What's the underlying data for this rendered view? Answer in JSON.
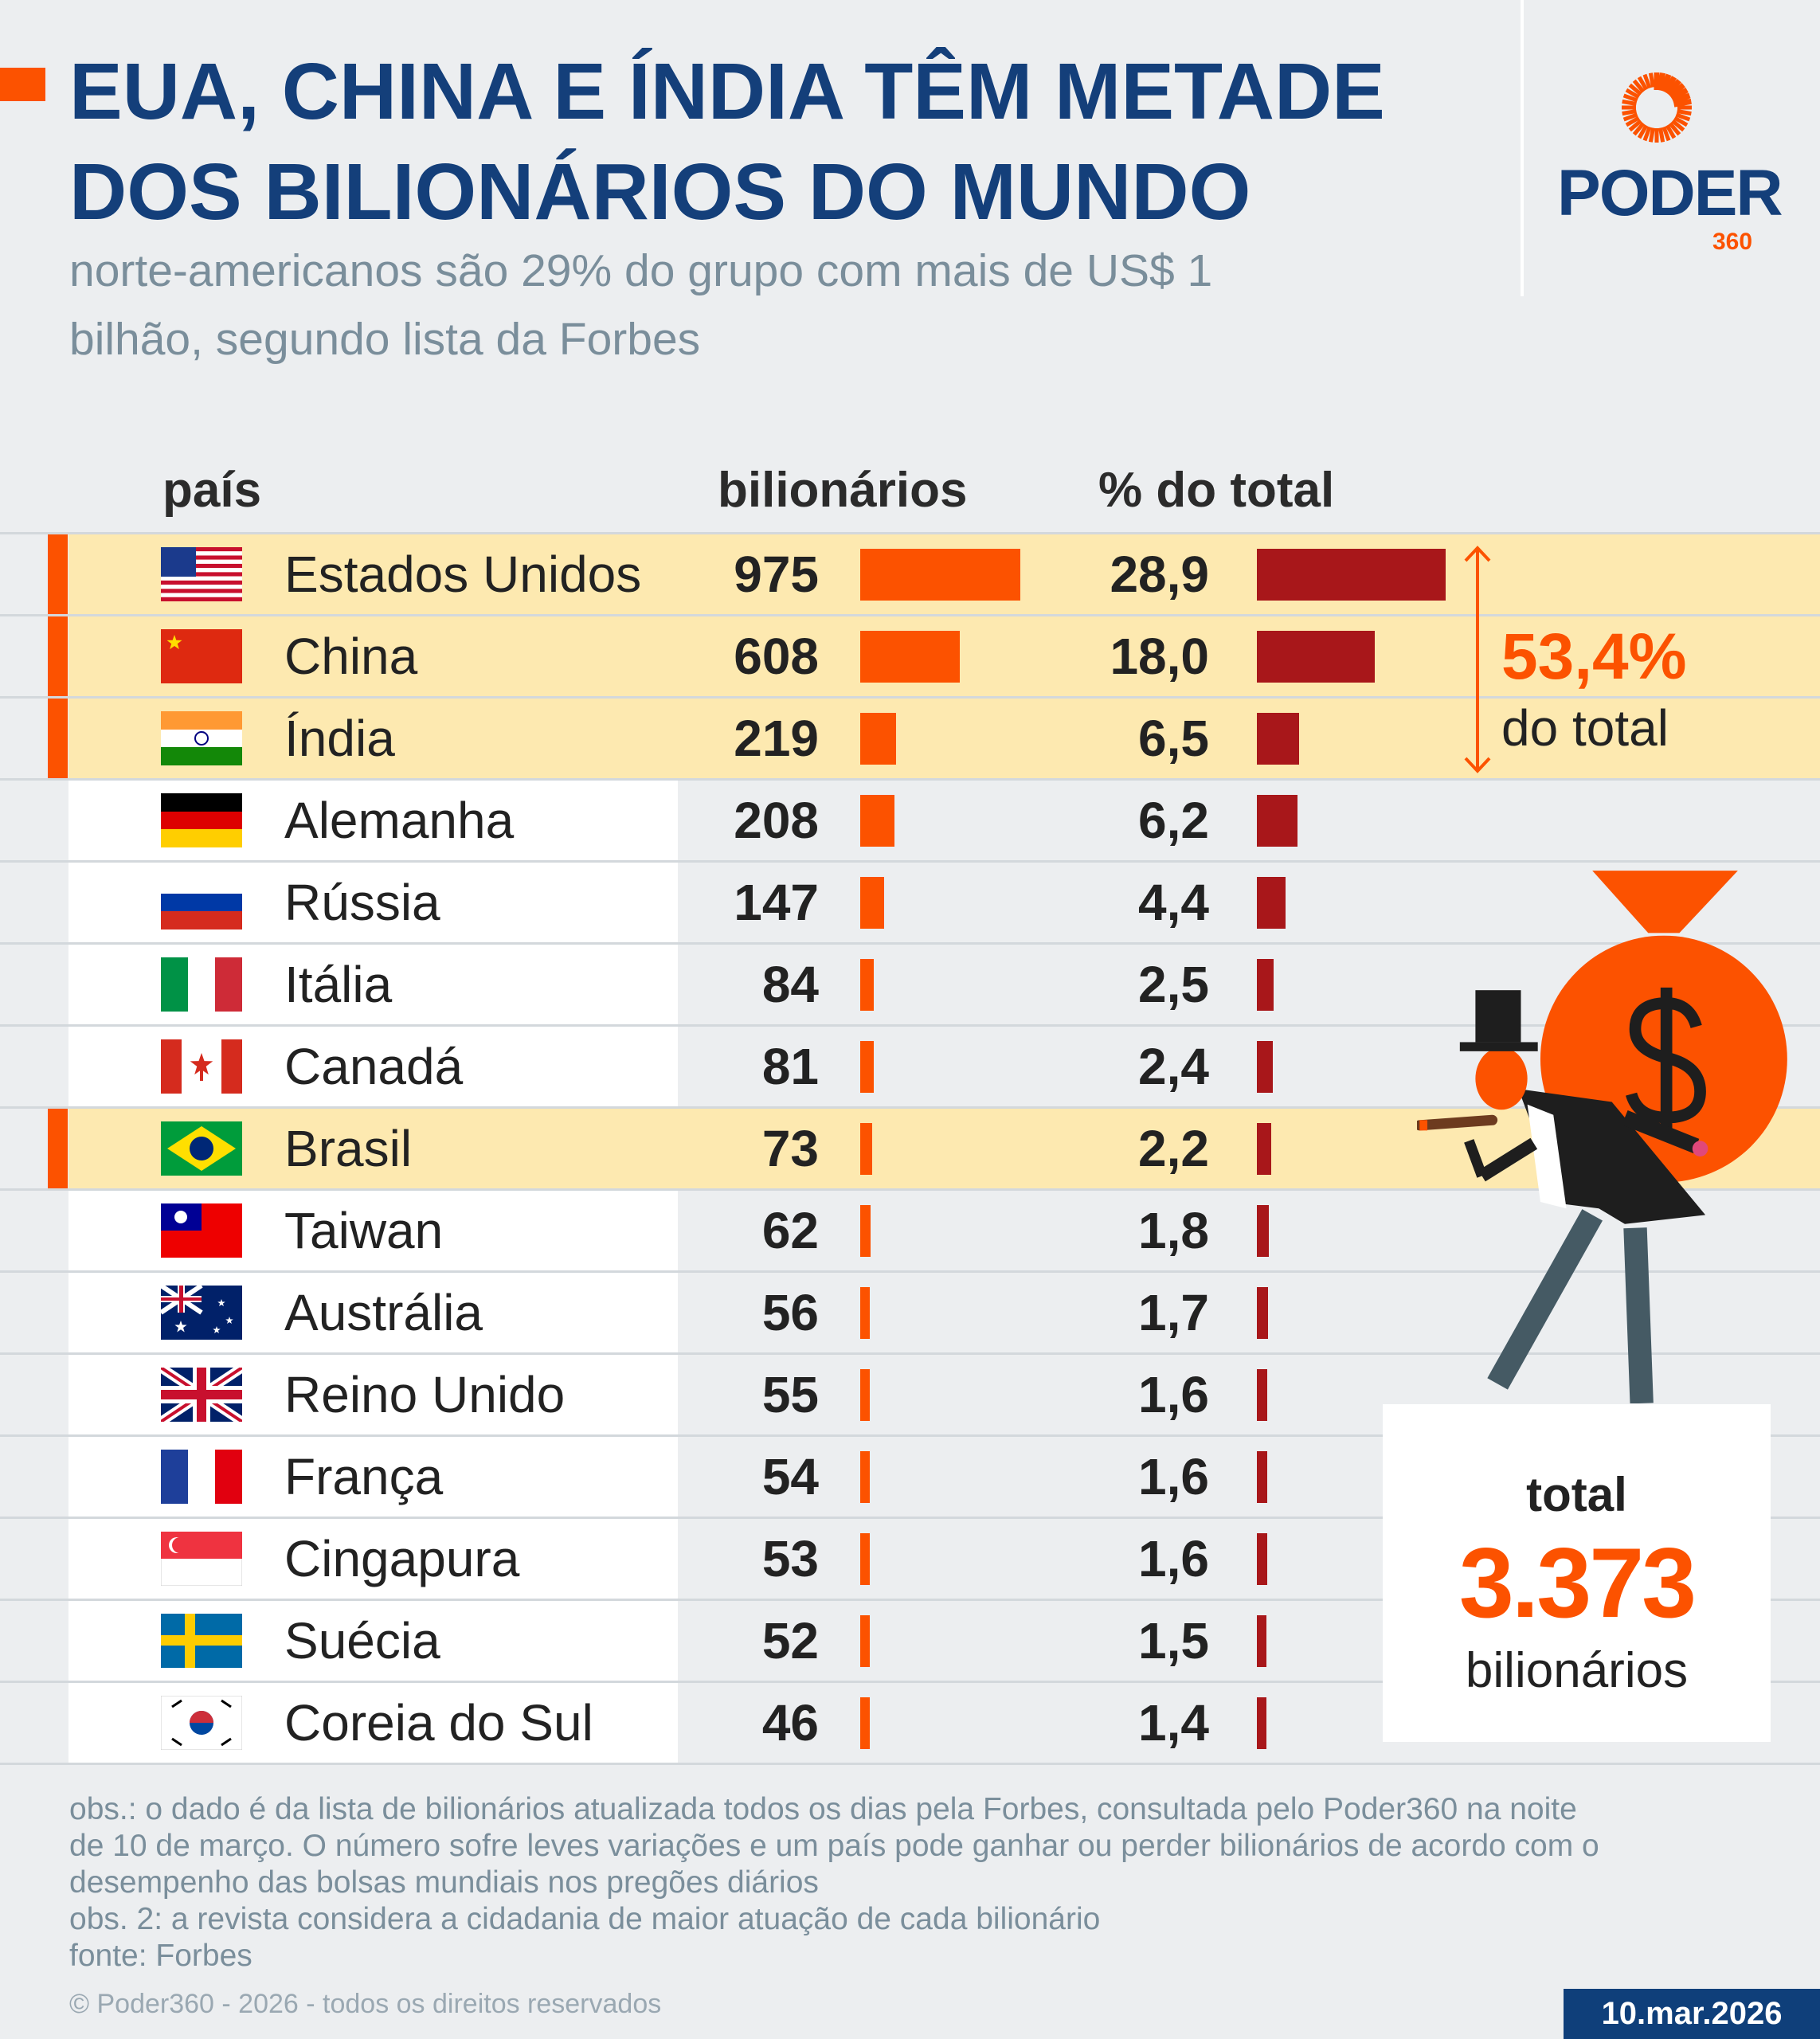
{
  "header": {
    "title_line1": "EUA, CHINA E ÍNDIA TÊM METADE",
    "title_line2": "DOS BILIONÁRIOS DO MUNDO",
    "subtitle_line1": "norte-americanos são 29% do grupo com mais de US$ 1",
    "subtitle_line2": "bilhão, segundo lista da Forbes"
  },
  "logo": {
    "text": "PODER",
    "suffix": "360"
  },
  "colors": {
    "title": "#143f7a",
    "accent": "#fc5200",
    "pct_bar": "#a8171a",
    "highlight": "#fde9b0"
  },
  "chart_data": {
    "type": "table",
    "columns": [
      "país",
      "bilionários",
      "% do total"
    ],
    "rows": [
      {
        "country": "Estados Unidos",
        "flag": "flag-us",
        "billionaires": 975,
        "pct": "28,9",
        "highlight": true
      },
      {
        "country": "China",
        "flag": "flag-cn",
        "billionaires": 608,
        "pct": "18,0",
        "highlight": true
      },
      {
        "country": "Índia",
        "flag": "flag-in",
        "billionaires": 219,
        "pct": "6,5",
        "highlight": true
      },
      {
        "country": "Alemanha",
        "flag": "flag-de",
        "billionaires": 208,
        "pct": "6,2",
        "highlight": false
      },
      {
        "country": "Rússia",
        "flag": "flag-ru",
        "billionaires": 147,
        "pct": "4,4",
        "highlight": false
      },
      {
        "country": "Itália",
        "flag": "flag-it",
        "billionaires": 84,
        "pct": "2,5",
        "highlight": false
      },
      {
        "country": "Canadá",
        "flag": "flag-ca",
        "billionaires": 81,
        "pct": "2,4",
        "highlight": false
      },
      {
        "country": "Brasil",
        "flag": "flag-br",
        "billionaires": 73,
        "pct": "2,2",
        "highlight": true
      },
      {
        "country": "Taiwan",
        "flag": "flag-tw",
        "billionaires": 62,
        "pct": "1,8",
        "highlight": false
      },
      {
        "country": "Austrália",
        "flag": "flag-au",
        "billionaires": 56,
        "pct": "1,7",
        "highlight": false
      },
      {
        "country": "Reino Unido",
        "flag": "flag-gb",
        "billionaires": 55,
        "pct": "1,6",
        "highlight": false
      },
      {
        "country": "França",
        "flag": "flag-fr",
        "billionaires": 54,
        "pct": "1,6",
        "highlight": false
      },
      {
        "country": "Cingapura",
        "flag": "flag-sg",
        "billionaires": 53,
        "pct": "1,6",
        "highlight": false
      },
      {
        "country": "Suécia",
        "flag": "flag-se",
        "billionaires": 52,
        "pct": "1,5",
        "highlight": false
      },
      {
        "country": "Coreia do Sul",
        "flag": "flag-kr",
        "billionaires": 46,
        "pct": "1,4",
        "highlight": false
      }
    ]
  },
  "callout": {
    "value": "53,4%",
    "label": "do total"
  },
  "total": {
    "label": "total",
    "value": "3.373",
    "unit": "bilionários"
  },
  "notes": [
    "obs.: o dado é da lista de bilionários atualizada todos os dias pela Forbes, consultada pelo Poder360 na noite",
    "de 10 de março. O número sofre leves variações e um país pode ganhar ou perder bilionários de acordo com o",
    "desempenho das bolsas mundiais nos pregões diários",
    "obs. 2: a revista considera a cidadania de maior atuação de cada bilionário",
    "fonte: Forbes"
  ],
  "copyright": "© Poder360 - 2026 - todos os direitos reservados",
  "date": "10.mar.2026"
}
